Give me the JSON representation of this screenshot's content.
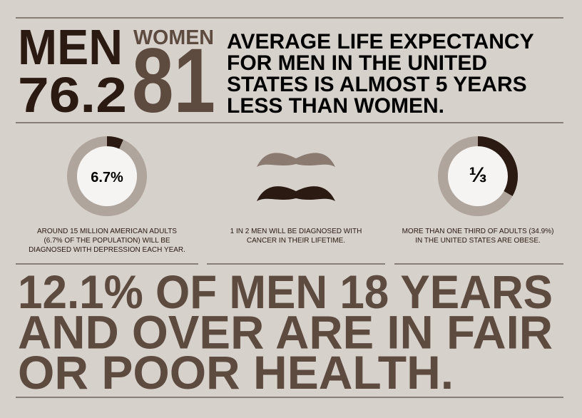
{
  "header": {
    "men": {
      "label": "MEN",
      "value": "76.2"
    },
    "women": {
      "label": "WOMEN",
      "value": "81"
    },
    "headline": [
      "AVERAGE LIFE EXPECTANCY",
      "FOR MEN IN THE UNITED",
      "STATES IS ALMOST 5 YEARS",
      "LESS THAN WOMEN."
    ]
  },
  "stats": [
    {
      "label": "6.7%",
      "percent": 6.7,
      "caption": [
        "AROUND 15 MILLION AMERICAN ADULTS",
        "(6.7% OF THE POPULATION) WILL BE",
        "DIAGNOSED WITH DEPRESSION EACH YEAR."
      ]
    },
    {
      "caption": [
        "1 IN 2 MEN WILL BE DIAGNOSED WITH",
        "CANCER IN THEIR LIFETIME."
      ]
    },
    {
      "label": "⅓",
      "percent": 33.3,
      "caption": [
        "MORE THAN ONE THIRD OF ADULTS (34.9%)",
        "IN THE UNITED STATES ARE OBESE."
      ]
    }
  ],
  "footer": [
    "12.1% OF MEN 18 YEARS",
    "AND OVER ARE IN FAIR",
    "OR POOR HEALTH."
  ]
}
